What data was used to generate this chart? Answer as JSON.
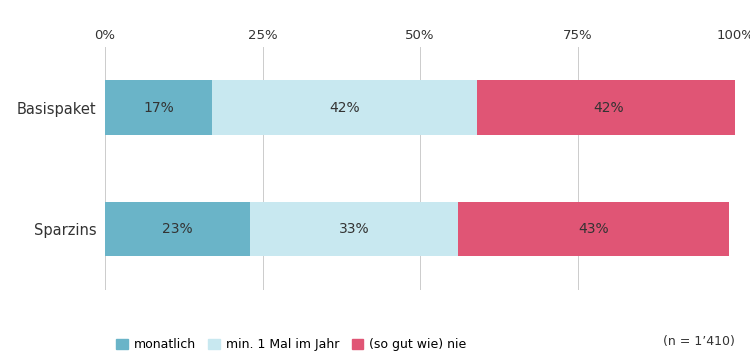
{
  "categories": [
    "Basispaket",
    "Sparzins"
  ],
  "series": [
    {
      "label": "monatlich",
      "values": [
        17,
        23
      ],
      "color": "#6ab4c8"
    },
    {
      "label": "min. 1 Mal im Jahr",
      "values": [
        42,
        33
      ],
      "color": "#c8e8f0"
    },
    {
      "label": "(so gut wie) nie",
      "values": [
        42,
        43
      ],
      "color": "#e05575"
    }
  ],
  "xticks": [
    0,
    25,
    50,
    75,
    100
  ],
  "xtick_labels": [
    "0%",
    "25%",
    "50%",
    "75%",
    "100%"
  ],
  "xlim": [
    0,
    100
  ],
  "note": "(n = 1’410)",
  "bar_height": 0.45,
  "background_color": "#ffffff",
  "text_color": "#333333",
  "label_fontsize": 10,
  "tick_fontsize": 9.5,
  "legend_fontsize": 9,
  "note_fontsize": 9,
  "ylabel_fontsize": 10.5
}
